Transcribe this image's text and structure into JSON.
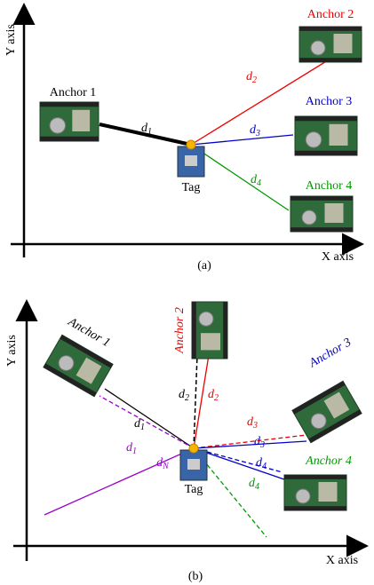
{
  "panel_a": {
    "y_axis": "Y axis",
    "x_axis": "X axis",
    "caption": "(a)",
    "tag": "Tag",
    "anchors": [
      "Anchor 1",
      "Anchor 2",
      "Anchor 3",
      "Anchor 4"
    ],
    "distances": [
      {
        "letter": "d",
        "sub": "1"
      },
      {
        "letter": "d",
        "sub": "2"
      },
      {
        "letter": "d",
        "sub": "3"
      },
      {
        "letter": "d",
        "sub": "4"
      }
    ]
  },
  "panel_b": {
    "y_axis": "Y axis",
    "x_axis": "X axis",
    "caption": "(b)",
    "tag": "Tag",
    "anchors": [
      "Anchor 1",
      "Anchor 2",
      "Anchor 3",
      "Anchor 4"
    ],
    "distances": [
      {
        "letter": "d",
        "sub": "1"
      },
      {
        "letter": "d",
        "sub": "1"
      },
      {
        "letter": "d",
        "sub": "2"
      },
      {
        "letter": "d",
        "sub": "2"
      },
      {
        "letter": "d",
        "sub": "3"
      },
      {
        "letter": "d",
        "sub": "3"
      },
      {
        "letter": "d",
        "sub": "4"
      },
      {
        "letter": "d",
        "sub": "4"
      },
      {
        "letter": "d",
        "sub": "N"
      }
    ]
  }
}
